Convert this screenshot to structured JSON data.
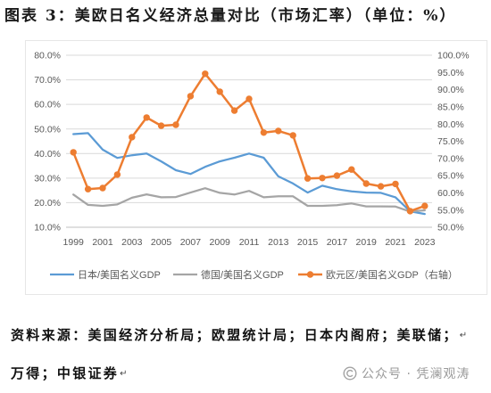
{
  "page": {
    "source_line_1": "资料来源：美国经济分析局；欧盟统计局；日本内阁府；美联储；",
    "source_line_2": "万得；中银证券",
    "paragraph_mark": "↵",
    "watermark_icon": "wechat-icon",
    "watermark_text": "公众号 · 凭澜观涛"
  },
  "chart_data": {
    "type": "line",
    "title": "图表 3：美欧日名义经济总量对比（市场汇率）（单位：%）",
    "x": [
      1999,
      2000,
      2001,
      2002,
      2003,
      2004,
      2005,
      2006,
      2007,
      2008,
      2009,
      2010,
      2011,
      2012,
      2013,
      2014,
      2015,
      2016,
      2017,
      2018,
      2019,
      2020,
      2021,
      2022,
      2023
    ],
    "x_tick_labels": [
      "1999",
      "2001",
      "2003",
      "2005",
      "2007",
      "2009",
      "2011",
      "2013",
      "2015",
      "2017",
      "2019",
      "2021",
      "2023"
    ],
    "y_left": {
      "ylim": [
        10,
        80
      ],
      "ticks": [
        10,
        20,
        30,
        40,
        50,
        60,
        70,
        80
      ],
      "tick_labels": [
        "10.0%",
        "20.0%",
        "30.0%",
        "40.0%",
        "50.0%",
        "60.0%",
        "70.0%",
        "80.0%"
      ]
    },
    "y_right": {
      "ylim": [
        50,
        100
      ],
      "ticks": [
        50,
        55,
        60,
        65,
        70,
        75,
        80,
        85,
        90,
        95,
        100
      ],
      "tick_labels": [
        "50.0%",
        "55.0%",
        "60.0%",
        "65.0%",
        "70.0%",
        "75.0%",
        "80.0%",
        "85.0%",
        "90.0%",
        "95.0%",
        "100.0%"
      ]
    },
    "grid": true,
    "legend_position": "bottom",
    "series": [
      {
        "name": "日本/美国名义GDP",
        "color": "#5b9bd5",
        "secondary_y": false,
        "markers": false,
        "values": [
          47.9,
          48.3,
          41.6,
          38.2,
          39.3,
          40.0,
          36.8,
          33.2,
          31.7,
          34.6,
          36.8,
          38.3,
          40.0,
          38.3,
          30.7,
          27.8,
          24.1,
          26.9,
          25.5,
          24.6,
          24.1,
          24.0,
          22.2,
          16.5,
          15.4
        ]
      },
      {
        "name": "德国/美国名义GDP",
        "color": "#a5a5a5",
        "secondary_y": false,
        "markers": false,
        "values": [
          23.3,
          19.1,
          18.7,
          19.3,
          22.0,
          23.4,
          22.2,
          22.3,
          24.1,
          25.9,
          24.0,
          23.3,
          24.8,
          22.2,
          22.6,
          22.6,
          18.7,
          18.7,
          19.0,
          19.7,
          18.5,
          18.5,
          18.4,
          16.4,
          16.9
        ]
      },
      {
        "name": "欧元区/美国名义GDP（右轴）",
        "color": "#ed7d31",
        "secondary_y": true,
        "markers": true,
        "values": [
          71.8,
          61.1,
          61.4,
          65.3,
          76.2,
          81.9,
          79.5,
          79.8,
          88.1,
          94.6,
          89.4,
          83.9,
          87.3,
          77.5,
          78.0,
          76.7,
          64.2,
          64.3,
          65.0,
          66.8,
          62.7,
          61.9,
          62.6,
          54.7,
          56.2
        ]
      }
    ]
  }
}
